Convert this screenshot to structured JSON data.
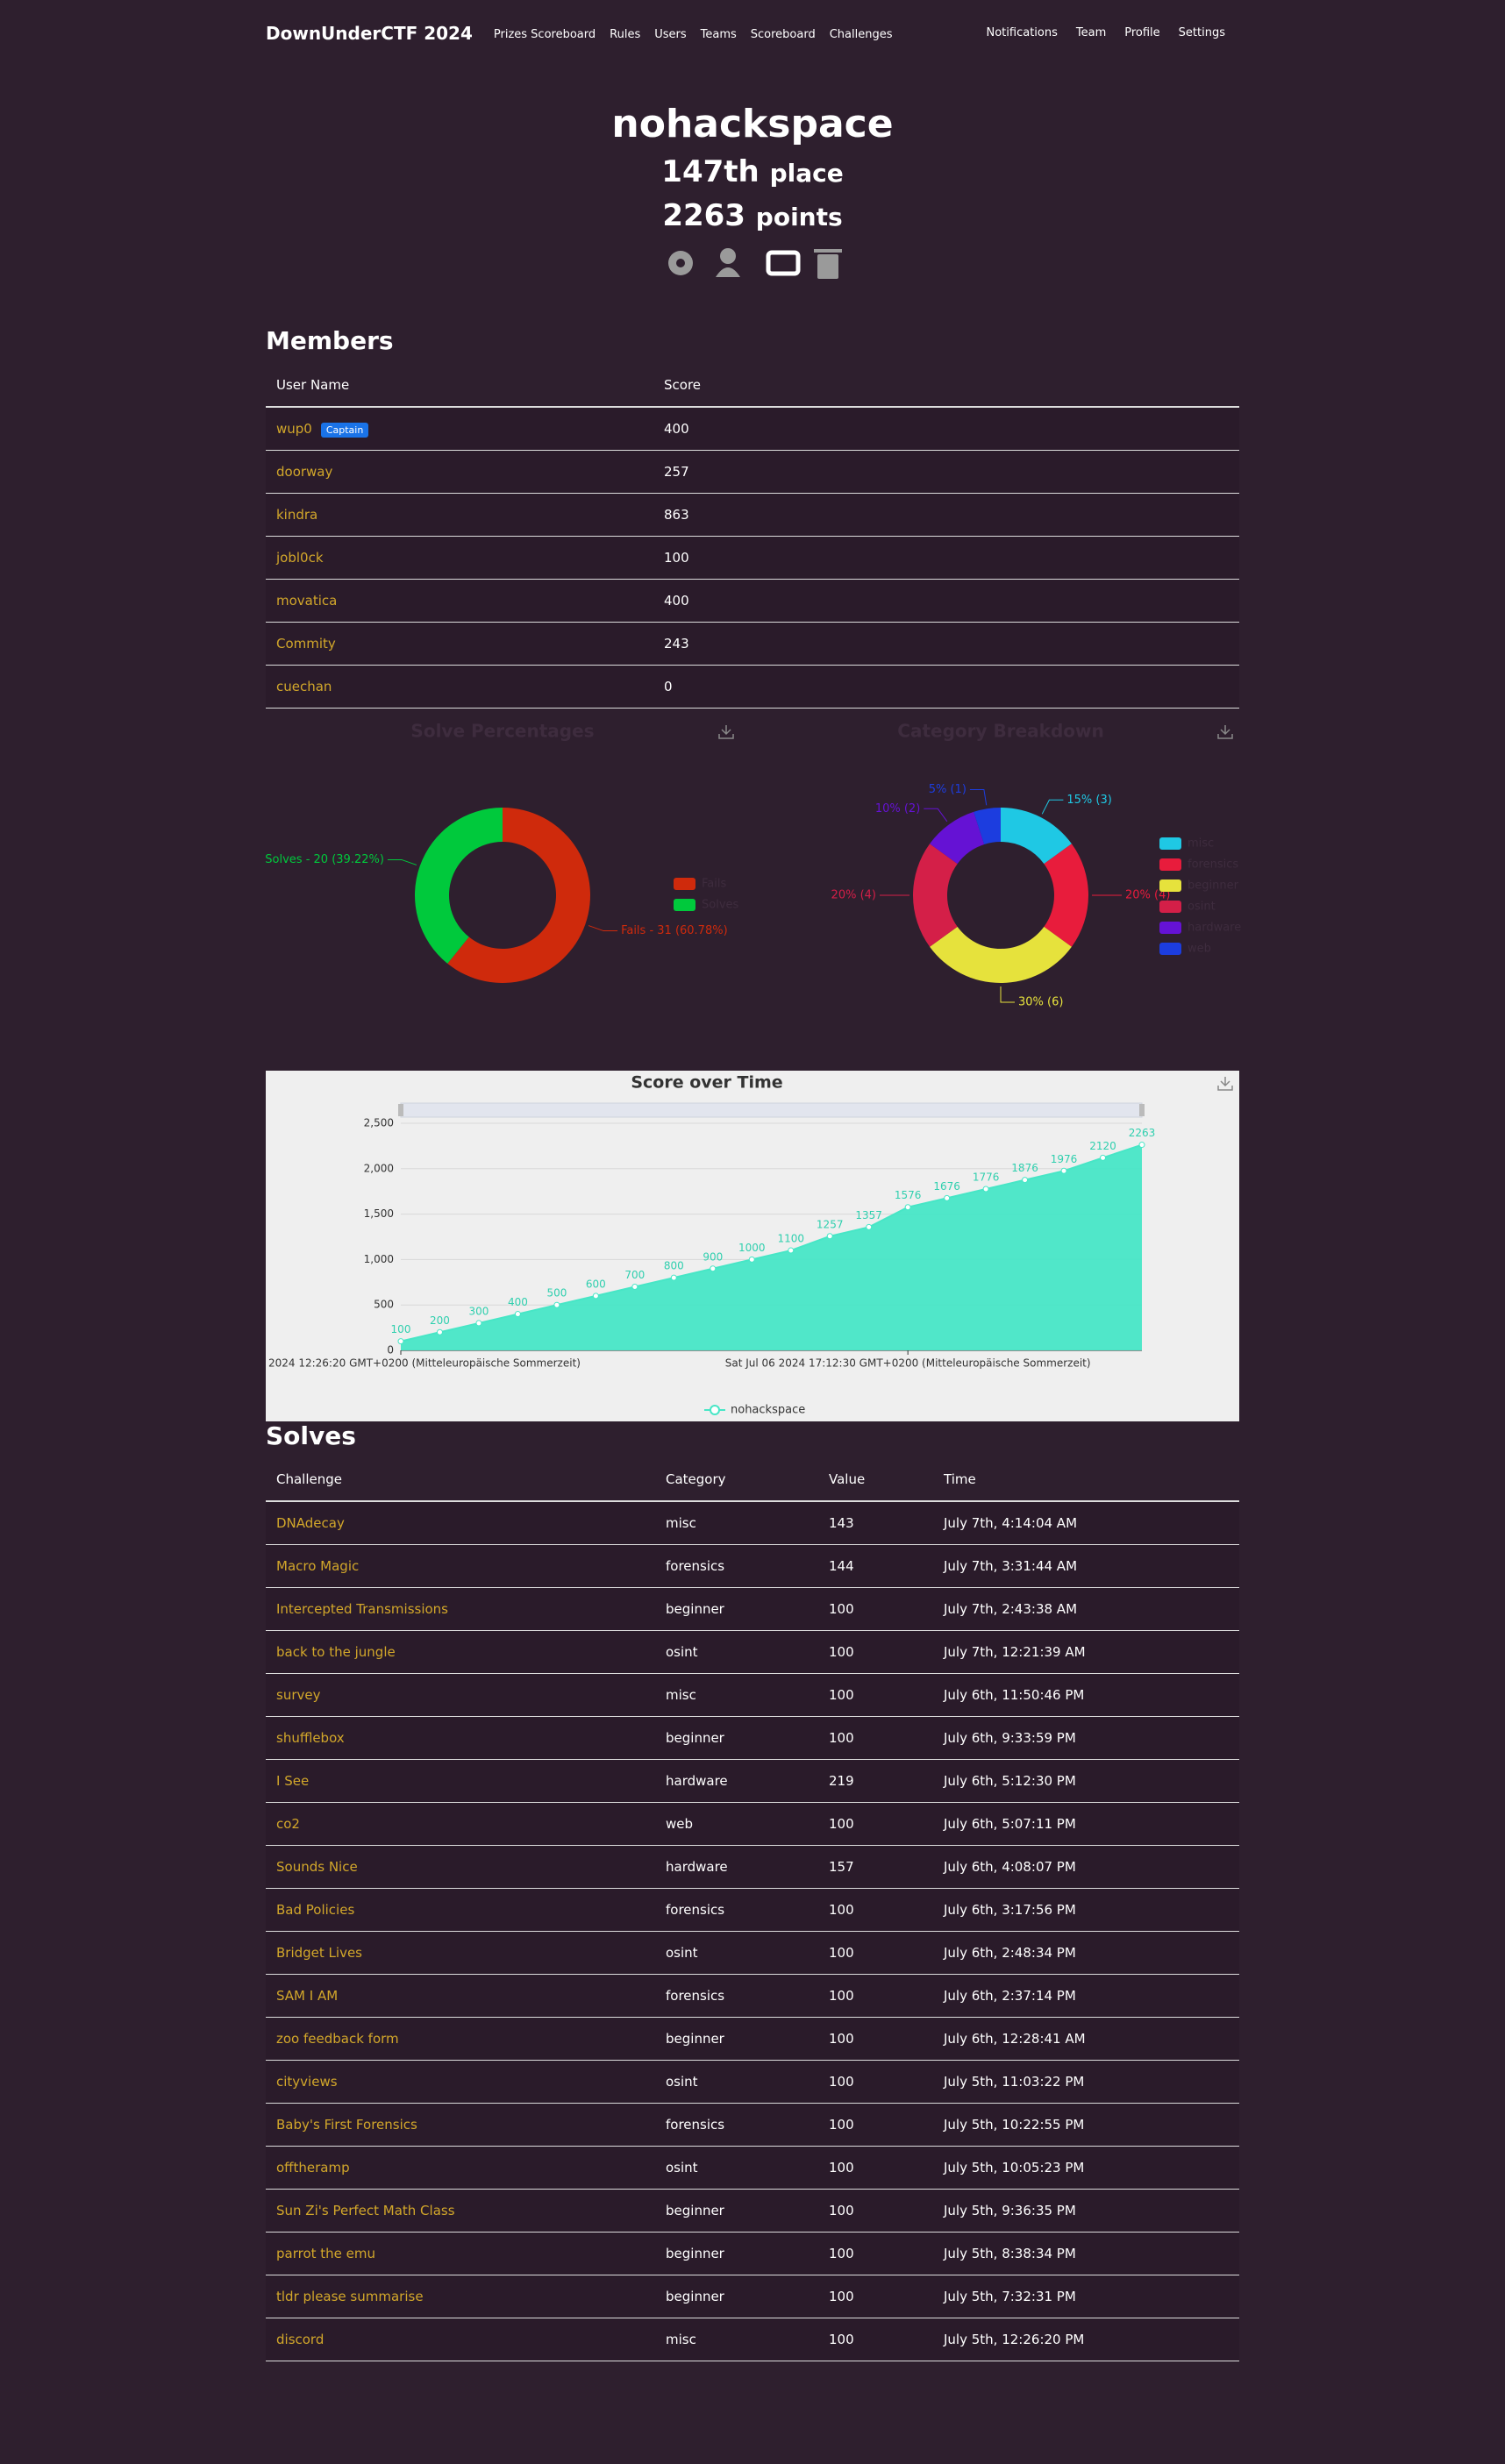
{
  "nav": {
    "brand": "DownUnderCTF 2024",
    "links": [
      "Prizes Scoreboard",
      "Rules",
      "Users",
      "Teams",
      "Scoreboard",
      "Challenges"
    ],
    "right_links": [
      "Notifications",
      "Team",
      "Profile",
      "Settings"
    ]
  },
  "team": {
    "name": "nohackspace",
    "place": "147th",
    "place_label": "place",
    "points": 2263,
    "points_label": "points"
  },
  "members": {
    "title": "Members",
    "columns": [
      "User Name",
      "Score"
    ],
    "captain_badge": "Captain",
    "rows": [
      {
        "name": "wup0",
        "score": 400,
        "captain": true
      },
      {
        "name": "doorway",
        "score": 257,
        "captain": false
      },
      {
        "name": "kindra",
        "score": 863,
        "captain": false
      },
      {
        "name": "jobl0ck",
        "score": 100,
        "captain": false
      },
      {
        "name": "movatica",
        "score": 400,
        "captain": false
      },
      {
        "name": "Commity",
        "score": 243,
        "captain": false
      },
      {
        "name": "cuechan",
        "score": 0,
        "captain": false
      }
    ]
  },
  "chart_data": [
    {
      "type": "pie",
      "title": "Solve Percentages",
      "donut": true,
      "categories": [
        "Fails",
        "Solves"
      ],
      "values": [
        31,
        20
      ],
      "value_labels": [
        "Fails - 31 (60.78%)",
        "Solves - 20 (39.22%)"
      ],
      "colors": [
        "#cf2a0c",
        "#00c93c"
      ]
    },
    {
      "type": "pie",
      "title": "Category Breakdown",
      "donut": true,
      "categories": [
        "misc",
        "forensics",
        "beginner",
        "osint",
        "hardware",
        "web"
      ],
      "values": [
        3,
        4,
        6,
        4,
        2,
        1
      ],
      "value_labels": [
        "15% (3)",
        "20% (4)",
        "30% (6)",
        "20% (4)",
        "10% (2)",
        "5% (1)"
      ],
      "colors": [
        "#1fc8e4",
        "#e81c3c",
        "#e6e23c",
        "#d41f48",
        "#6512d4",
        "#1c3ddf"
      ]
    },
    {
      "type": "line",
      "title": "Score over Time",
      "grid": true,
      "categories": [
        "2024 12:26:20 GMT+0200 (Mitteleuropäische Sommerzeit)",
        null,
        null,
        null,
        null,
        null,
        null,
        null,
        null,
        null,
        null,
        null,
        null,
        "Sat Jul 06 2024 17:12:30 GMT+0200 (Mitteleuropäische Sommerzeit)",
        null,
        null,
        null,
        null,
        null,
        null
      ],
      "series": [
        {
          "name": "nohackspace",
          "color": "#47e6c6",
          "values": [
            100,
            200,
            300,
            400,
            500,
            600,
            700,
            800,
            900,
            1000,
            1100,
            1257,
            1357,
            1576,
            1676,
            1776,
            1876,
            1976,
            2120,
            2263
          ]
        }
      ],
      "ylim": [
        0,
        2500
      ],
      "yticks": [
        0,
        500,
        {
          "value": 1000,
          "label": "1,000"
        },
        {
          "value": 1500,
          "label": "1,500"
        },
        {
          "value": 2000,
          "label": "2,000"
        },
        {
          "value": 2500,
          "label": "2,500"
        }
      ]
    }
  ],
  "solves": {
    "title": "Solves",
    "columns": [
      "Challenge",
      "Category",
      "Value",
      "Time"
    ],
    "rows": [
      [
        "DNAdecay",
        "misc",
        143,
        "July 7th, 4:14:04 AM"
      ],
      [
        "Macro Magic",
        "forensics",
        144,
        "July 7th, 3:31:44 AM"
      ],
      [
        "Intercepted Transmissions",
        "beginner",
        100,
        "July 7th, 2:43:38 AM"
      ],
      [
        "back to the jungle",
        "osint",
        100,
        "July 7th, 12:21:39 AM"
      ],
      [
        "survey",
        "misc",
        100,
        "July 6th, 11:50:46 PM"
      ],
      [
        "shufflebox",
        "beginner",
        100,
        "July 6th, 9:33:59 PM"
      ],
      [
        "I See",
        "hardware",
        219,
        "July 6th, 5:12:30 PM"
      ],
      [
        "co2",
        "web",
        100,
        "July 6th, 5:07:11 PM"
      ],
      [
        "Sounds Nice",
        "hardware",
        157,
        "July 6th, 4:08:07 PM"
      ],
      [
        "Bad Policies",
        "forensics",
        100,
        "July 6th, 3:17:56 PM"
      ],
      [
        "Bridget Lives",
        "osint",
        100,
        "July 6th, 2:48:34 PM"
      ],
      [
        "SAM I AM",
        "forensics",
        100,
        "July 6th, 2:37:14 PM"
      ],
      [
        "zoo feedback form",
        "beginner",
        100,
        "July 6th, 12:28:41 AM"
      ],
      [
        "cityviews",
        "osint",
        100,
        "July 5th, 11:03:22 PM"
      ],
      [
        "Baby's First Forensics",
        "forensics",
        100,
        "July 5th, 10:22:55 PM"
      ],
      [
        "offtheramp",
        "osint",
        100,
        "July 5th, 10:05:23 PM"
      ],
      [
        "Sun Zi's Perfect Math Class",
        "beginner",
        100,
        "July 5th, 9:36:35 PM"
      ],
      [
        "parrot the emu",
        "beginner",
        100,
        "July 5th, 8:38:34 PM"
      ],
      [
        "tldr please summarise",
        "beginner",
        100,
        "July 5th, 7:32:31 PM"
      ],
      [
        "discord",
        "misc",
        100,
        "July 5th, 12:26:20 PM"
      ]
    ]
  }
}
